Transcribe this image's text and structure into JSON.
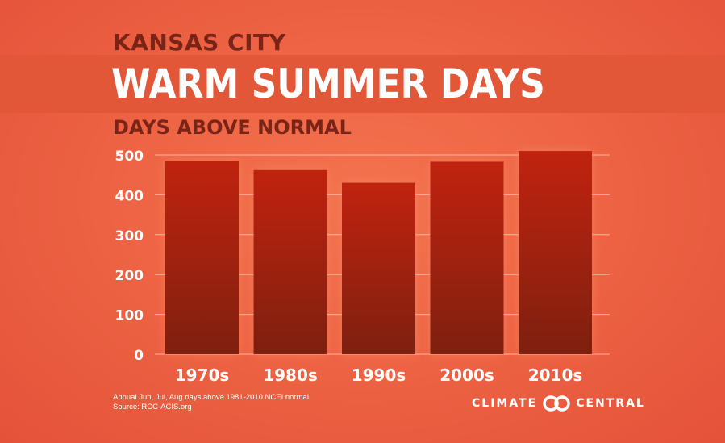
{
  "header": {
    "city": "KANSAS CITY",
    "title": "WARM SUMMER DAYS",
    "subtitle": "DAYS ABOVE NORMAL"
  },
  "chart_data": {
    "type": "bar",
    "categories": [
      "1970s",
      "1980s",
      "1990s",
      "2000s",
      "2010s"
    ],
    "values": [
      485,
      462,
      430,
      483,
      510
    ],
    "ylim": [
      0,
      500
    ],
    "yticks": [
      0,
      100,
      200,
      300,
      400,
      500
    ],
    "grid": true,
    "bar_color": "#b42310"
  },
  "footer": {
    "note": "Annual Jun, Jul, Aug days above 1981-2010 NCEI normal",
    "source": "Source: RCC-ACIS.org",
    "brand_left": "CLIMATE",
    "brand_right": "CENTRAL",
    "brand_icon": "interlocking-circles-icon"
  }
}
